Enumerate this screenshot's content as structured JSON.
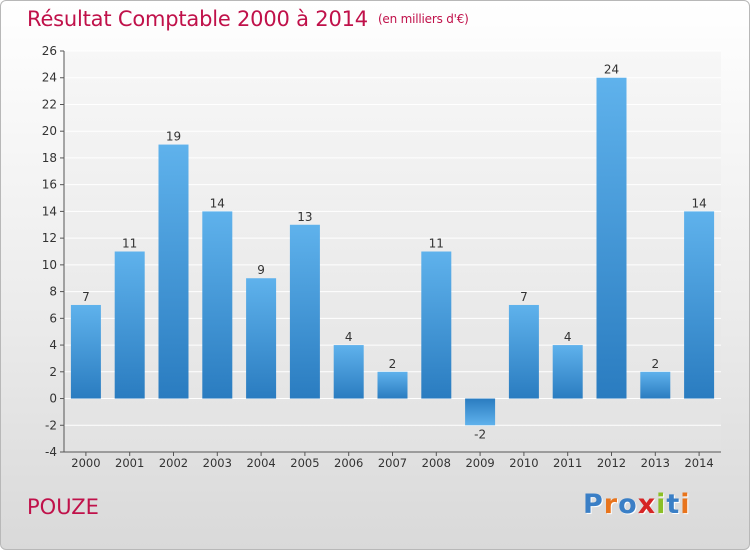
{
  "header": {
    "title": "Résultat Comptable 2000 à 2014",
    "unit": "(en milliers d'€)"
  },
  "footer": {
    "commune": "POUZE",
    "brand": "Proxiti"
  },
  "colors": {
    "title": "#c0114a",
    "bar_light": "#5fb2ec",
    "bar_dark": "#2a7cc0",
    "brand_letters": [
      "#3a7fc6",
      "#e8741c",
      "#3a7fc6",
      "#d62525",
      "#8cbf26",
      "#3a7fc6",
      "#e8741c"
    ]
  },
  "chart_data": {
    "type": "bar",
    "title": "Résultat Comptable 2000 à 2014",
    "subtitle": "(en milliers d'€)",
    "xlabel": "",
    "ylabel": "",
    "categories": [
      "2000",
      "2001",
      "2002",
      "2003",
      "2004",
      "2005",
      "2006",
      "2007",
      "2008",
      "2009",
      "2010",
      "2011",
      "2012",
      "2013",
      "2014"
    ],
    "values": [
      7,
      11,
      19,
      14,
      9,
      13,
      4,
      2,
      11,
      -2,
      7,
      4,
      24,
      2,
      14
    ],
    "ylim": [
      -4,
      26
    ],
    "yticks": [
      -4,
      -2,
      0,
      2,
      4,
      6,
      8,
      10,
      12,
      14,
      16,
      18,
      20,
      22,
      24,
      26
    ],
    "grid": true,
    "data_labels": true
  }
}
